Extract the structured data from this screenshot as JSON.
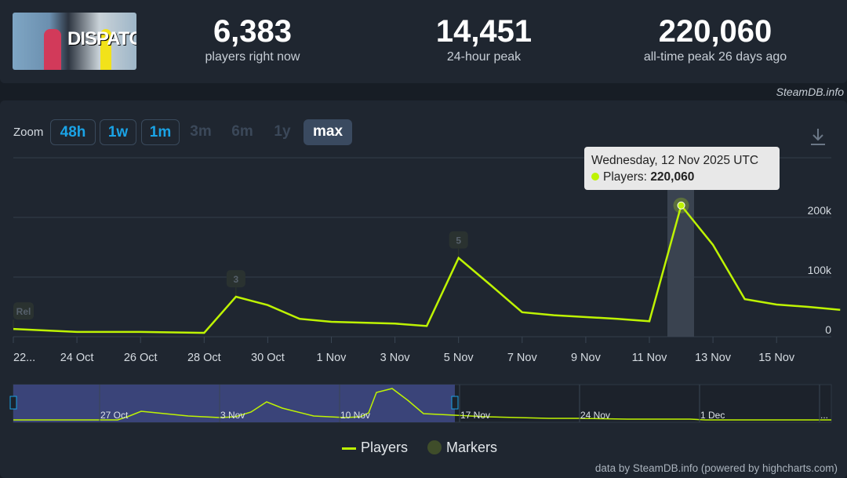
{
  "header": {
    "logo_text": "DISPATCH",
    "stats": [
      {
        "value": "6,383",
        "label": "players right now"
      },
      {
        "value": "14,451",
        "label": "24-hour peak"
      },
      {
        "value": "220,060",
        "label": "all-time peak 26 days ago"
      }
    ],
    "credit": "SteamDB.info"
  },
  "zoom": {
    "label": "Zoom",
    "buttons": [
      {
        "label": "48h",
        "state": "enabled"
      },
      {
        "label": "1w",
        "state": "enabled"
      },
      {
        "label": "1m",
        "state": "enabled"
      },
      {
        "label": "3m",
        "state": "disabled"
      },
      {
        "label": "6m",
        "state": "disabled"
      },
      {
        "label": "1y",
        "state": "disabled"
      },
      {
        "label": "max",
        "state": "selected"
      }
    ]
  },
  "tooltip": {
    "date": "Wednesday, 12 Nov 2025 UTC",
    "series": "Players:",
    "value": "220,060"
  },
  "legend": {
    "players": "Players",
    "markers": "Markers"
  },
  "footer": "data by SteamDB.info (powered by highcharts.com)",
  "colors": {
    "line": "#bef303",
    "background": "#1f2630",
    "accent": "#1aa3e6"
  },
  "chart_data": {
    "type": "line",
    "series": [
      {
        "name": "Players",
        "points": [
          [
            "2025-10-22",
            13000
          ],
          [
            "2025-10-24",
            8000
          ],
          [
            "2025-10-26",
            8000
          ],
          [
            "2025-10-28",
            6500
          ],
          [
            "2025-10-29",
            67000
          ],
          [
            "2025-10-30",
            53000
          ],
          [
            "2025-10-31",
            30000
          ],
          [
            "2025-11-01",
            25000
          ],
          [
            "2025-11-03",
            22000
          ],
          [
            "2025-11-04",
            18000
          ],
          [
            "2025-11-05",
            132000
          ],
          [
            "2025-11-06",
            87000
          ],
          [
            "2025-11-07",
            41000
          ],
          [
            "2025-11-08",
            36000
          ],
          [
            "2025-11-10",
            30000
          ],
          [
            "2025-11-11",
            26000
          ],
          [
            "2025-11-12",
            220060
          ],
          [
            "2025-11-13",
            154000
          ],
          [
            "2025-11-14",
            63000
          ],
          [
            "2025-11-15",
            54000
          ],
          [
            "2025-11-16",
            50000
          ],
          [
            "2025-11-17",
            45000
          ]
        ]
      }
    ],
    "markers": [
      {
        "date": "2025-10-22",
        "label": "Rel"
      },
      {
        "date": "2025-10-29",
        "label": "3"
      },
      {
        "date": "2025-11-05",
        "label": "5"
      }
    ],
    "x_ticks": [
      "22...",
      "24 Oct",
      "26 Oct",
      "28 Oct",
      "30 Oct",
      "1 Nov",
      "3 Nov",
      "5 Nov",
      "7 Nov",
      "9 Nov",
      "11 Nov",
      "13 Nov",
      "15 Nov"
    ],
    "y_ticks": [
      "0",
      "100k",
      "200k"
    ],
    "ylim": [
      0,
      300000
    ],
    "grid": true,
    "navigator_ticks": [
      "27 Oct",
      "3 Nov",
      "10 Nov",
      "17 Nov",
      "24 Nov",
      "1 Dec",
      "..."
    ],
    "legend_position": "bottom"
  }
}
